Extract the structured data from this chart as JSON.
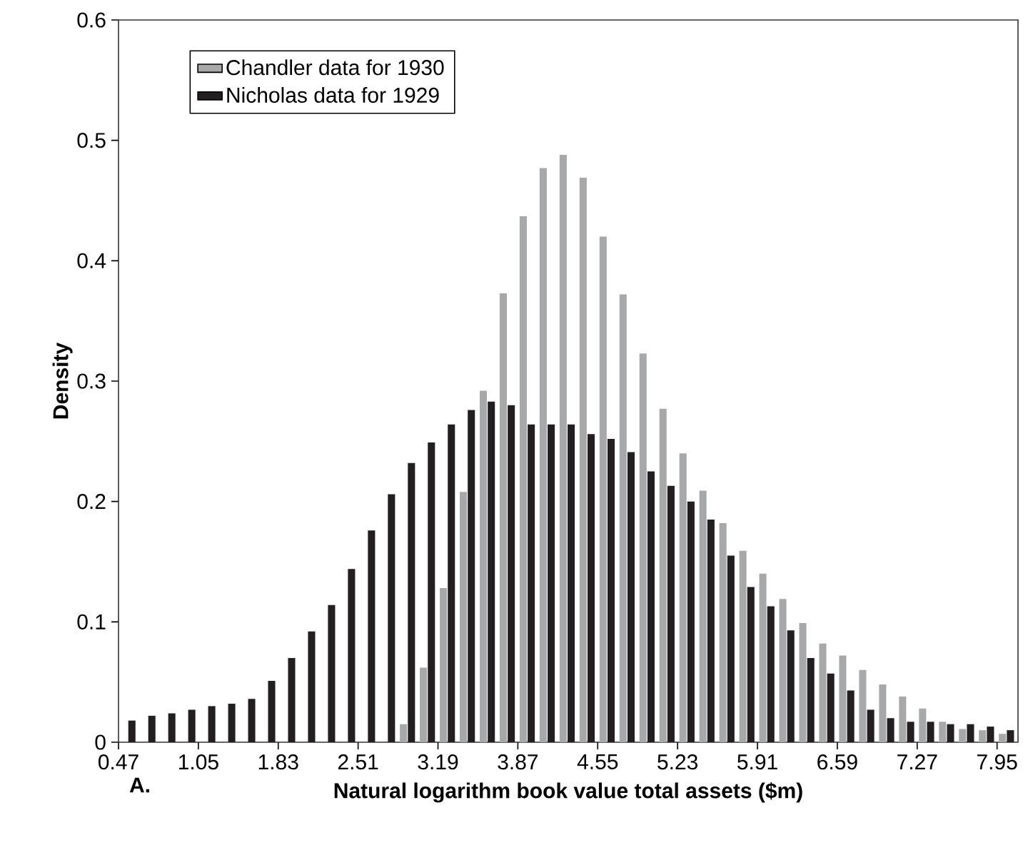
{
  "chart_data": {
    "type": "bar",
    "xlabel": "Natural logarithm book value total assets ($m)",
    "ylabel": "Density",
    "categories": [
      "0.47",
      null,
      null,
      null,
      "1.05",
      null,
      null,
      null,
      "1.83",
      null,
      null,
      null,
      "2.51",
      null,
      null,
      null,
      "3.19",
      null,
      null,
      null,
      "3.87",
      null,
      null,
      null,
      "4.55",
      null,
      null,
      null,
      "5.23",
      null,
      null,
      null,
      "5.91",
      null,
      null,
      null,
      "6.59",
      null,
      null,
      null,
      "7.27",
      null,
      null,
      null,
      "7.95",
      null
    ],
    "series": [
      {
        "name": "Chandler data for 1930",
        "color": "#a7a8aa",
        "values": [
          null,
          null,
          null,
          null,
          null,
          null,
          null,
          null,
          null,
          null,
          null,
          null,
          null,
          null,
          0.015,
          0.062,
          0.128,
          0.208,
          0.292,
          0.373,
          0.437,
          0.477,
          0.488,
          0.469,
          0.42,
          0.372,
          0.323,
          0.277,
          0.24,
          0.209,
          0.182,
          0.159,
          0.14,
          0.119,
          0.099,
          0.082,
          0.072,
          0.06,
          0.048,
          0.038,
          0.028,
          0.017,
          0.011,
          0.01,
          0.007,
          null
        ]
      },
      {
        "name": "Nicholas data for 1929",
        "color": "#231f20",
        "values": [
          null,
          0.018,
          0.022,
          0.024,
          0.027,
          0.03,
          0.032,
          0.036,
          0.051,
          0.07,
          0.092,
          0.114,
          0.144,
          0.176,
          0.206,
          0.232,
          0.249,
          0.264,
          0.276,
          0.283,
          0.28,
          0.264,
          0.264,
          0.264,
          0.256,
          0.252,
          0.241,
          0.225,
          0.213,
          0.2,
          0.185,
          0.155,
          0.129,
          0.113,
          0.093,
          0.07,
          0.057,
          0.043,
          0.027,
          0.02,
          0.017,
          0.017,
          0.015,
          0.015,
          0.013,
          0.01
        ]
      }
    ],
    "ylim": [
      0,
      0.6
    ],
    "yticks": [
      0,
      0.1,
      0.2,
      0.3,
      0.4,
      0.5,
      0.6
    ],
    "grid": false,
    "legend": "top left",
    "annotations": [
      "A."
    ]
  }
}
